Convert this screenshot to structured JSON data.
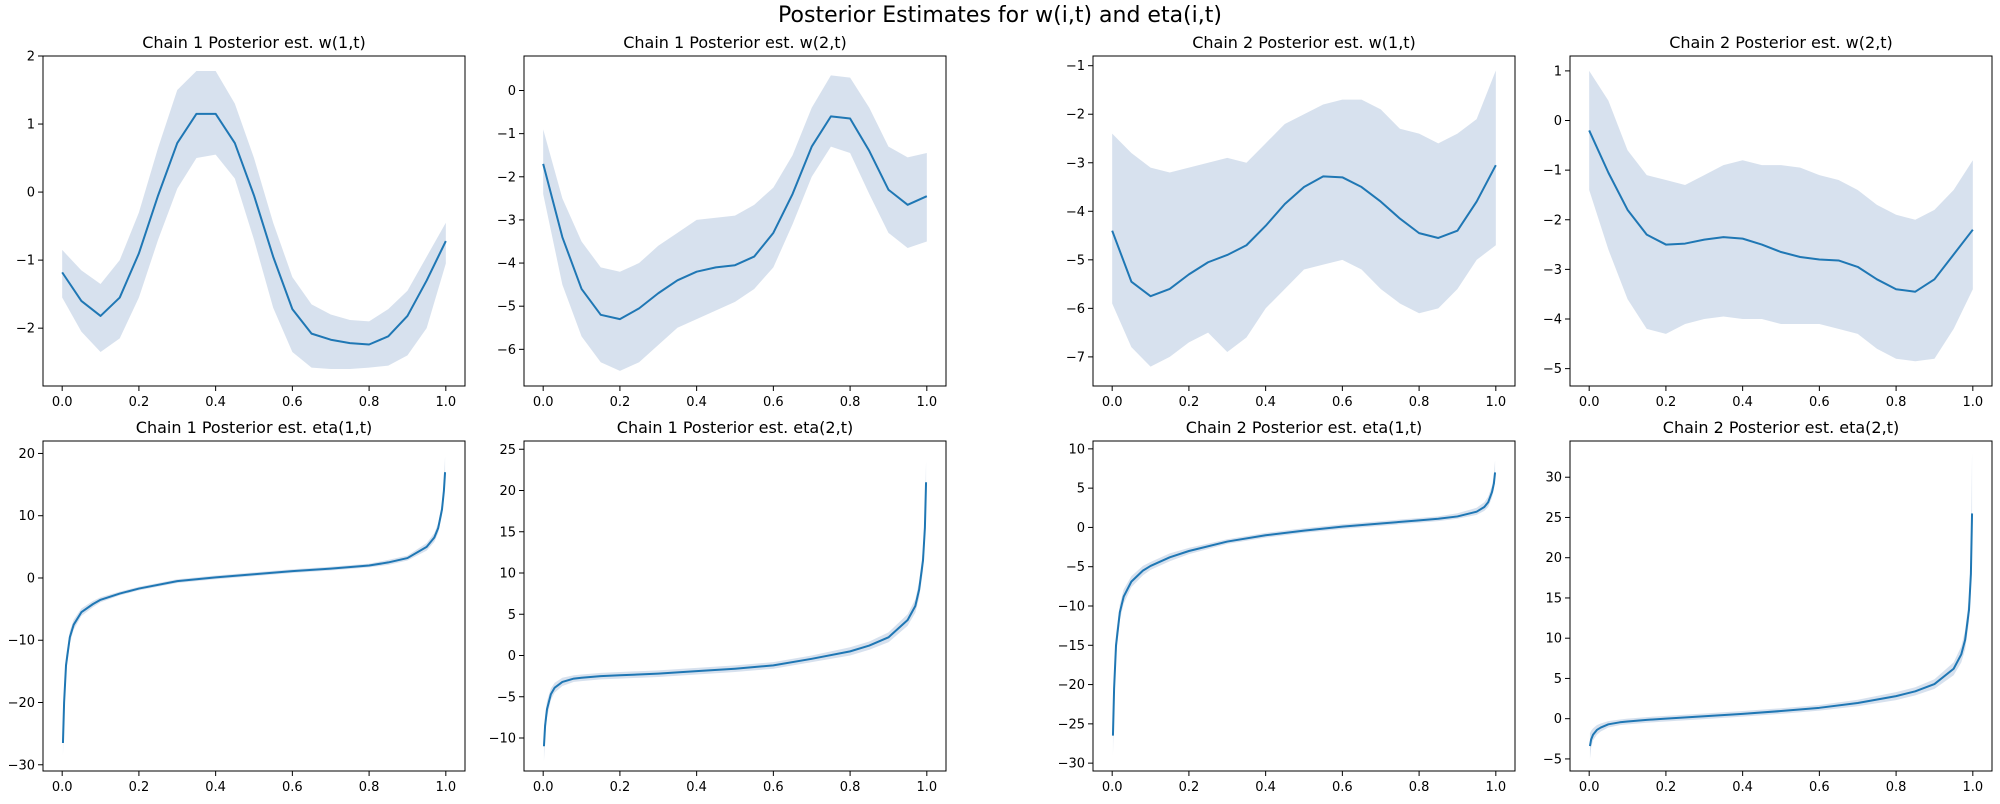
{
  "figure": {
    "title": "Posterior Estimates for w(i,t) and eta(i,t)",
    "line_color": "#1f77b4",
    "band_color": "#b0c4de",
    "axes_color": "#000000",
    "background": "#ffffff"
  },
  "chart_data": [
    {
      "type": "line",
      "title": "Chain 1 Posterior est. w(1,t)",
      "xlim": [
        -0.05,
        1.05
      ],
      "ylim": [
        -2.85,
        2.0
      ],
      "xticks": [
        0.0,
        0.2,
        0.4,
        0.6,
        0.8,
        1.0
      ],
      "xtick_labels": [
        "0.0",
        "0.2",
        "0.4",
        "0.6",
        "0.8",
        "1.0"
      ],
      "yticks": [
        -2,
        -1,
        0,
        1,
        2
      ],
      "ytick_labels": [
        "−2",
        "−1",
        "0",
        "1",
        "2"
      ],
      "grid": false,
      "x": [
        0.0,
        0.05,
        0.1,
        0.15,
        0.2,
        0.25,
        0.3,
        0.35,
        0.4,
        0.45,
        0.5,
        0.55,
        0.6,
        0.65,
        0.7,
        0.75,
        0.8,
        0.85,
        0.9,
        0.95,
        1.0
      ],
      "mean": [
        -1.18,
        -1.6,
        -1.82,
        -1.55,
        -0.9,
        -0.05,
        0.72,
        1.15,
        1.15,
        0.72,
        -0.05,
        -0.95,
        -1.72,
        -2.08,
        -2.17,
        -2.22,
        -2.24,
        -2.12,
        -1.82,
        -1.3,
        -0.72
      ],
      "lower": [
        -1.55,
        -2.05,
        -2.35,
        -2.15,
        -1.55,
        -0.7,
        0.05,
        0.5,
        0.55,
        0.2,
        -0.7,
        -1.7,
        -2.35,
        -2.58,
        -2.6,
        -2.6,
        -2.58,
        -2.55,
        -2.4,
        -2.0,
        -1.05
      ],
      "upper": [
        -0.85,
        -1.15,
        -1.35,
        -1.0,
        -0.3,
        0.65,
        1.5,
        1.78,
        1.78,
        1.3,
        0.5,
        -0.45,
        -1.25,
        -1.65,
        -1.8,
        -1.88,
        -1.9,
        -1.72,
        -1.45,
        -0.95,
        -0.45
      ]
    },
    {
      "type": "line",
      "title": "Chain 1 Posterior est. w(2,t)",
      "xlim": [
        -0.05,
        1.05
      ],
      "ylim": [
        -6.85,
        0.8
      ],
      "xticks": [
        0.0,
        0.2,
        0.4,
        0.6,
        0.8,
        1.0
      ],
      "xtick_labels": [
        "0.0",
        "0.2",
        "0.4",
        "0.6",
        "0.8",
        "1.0"
      ],
      "yticks": [
        -6,
        -5,
        -4,
        -3,
        -2,
        -1,
        0
      ],
      "ytick_labels": [
        "−6",
        "−5",
        "−4",
        "−3",
        "−2",
        "−1",
        "0"
      ],
      "grid": false,
      "x": [
        0.0,
        0.05,
        0.1,
        0.15,
        0.2,
        0.25,
        0.3,
        0.35,
        0.4,
        0.45,
        0.5,
        0.55,
        0.6,
        0.65,
        0.7,
        0.75,
        0.8,
        0.85,
        0.9,
        0.95,
        1.0
      ],
      "mean": [
        -1.7,
        -3.4,
        -4.6,
        -5.2,
        -5.3,
        -5.05,
        -4.7,
        -4.4,
        -4.2,
        -4.1,
        -4.05,
        -3.85,
        -3.3,
        -2.4,
        -1.3,
        -0.6,
        -0.65,
        -1.4,
        -2.3,
        -2.65,
        -2.45
      ],
      "lower": [
        -2.4,
        -4.5,
        -5.7,
        -6.3,
        -6.5,
        -6.3,
        -5.9,
        -5.5,
        -5.3,
        -5.1,
        -4.9,
        -4.6,
        -4.1,
        -3.1,
        -2.0,
        -1.3,
        -1.45,
        -2.4,
        -3.3,
        -3.65,
        -3.5
      ],
      "upper": [
        -0.9,
        -2.5,
        -3.5,
        -4.1,
        -4.2,
        -4.0,
        -3.6,
        -3.3,
        -3.0,
        -2.95,
        -2.9,
        -2.65,
        -2.25,
        -1.5,
        -0.4,
        0.35,
        0.3,
        -0.4,
        -1.3,
        -1.55,
        -1.45
      ]
    },
    {
      "type": "line",
      "title": "Chain 2 Posterior est. w(1,t)",
      "xlim": [
        -0.05,
        1.05
      ],
      "ylim": [
        -7.6,
        -0.8
      ],
      "xticks": [
        0.0,
        0.2,
        0.4,
        0.6,
        0.8,
        1.0
      ],
      "xtick_labels": [
        "0.0",
        "0.2",
        "0.4",
        "0.6",
        "0.8",
        "1.0"
      ],
      "yticks": [
        -7,
        -6,
        -5,
        -4,
        -3,
        -2,
        -1
      ],
      "ytick_labels": [
        "−7",
        "−6",
        "−5",
        "−4",
        "−3",
        "−2",
        "−1"
      ],
      "grid": false,
      "x": [
        0.0,
        0.05,
        0.1,
        0.15,
        0.2,
        0.25,
        0.3,
        0.35,
        0.4,
        0.45,
        0.5,
        0.55,
        0.6,
        0.65,
        0.7,
        0.75,
        0.8,
        0.85,
        0.9,
        0.95,
        1.0
      ],
      "mean": [
        -4.4,
        -5.45,
        -5.75,
        -5.6,
        -5.3,
        -5.05,
        -4.9,
        -4.7,
        -4.3,
        -3.85,
        -3.5,
        -3.28,
        -3.3,
        -3.5,
        -3.8,
        -4.15,
        -4.45,
        -4.55,
        -4.4,
        -3.8,
        -3.05
      ],
      "lower": [
        -5.9,
        -6.8,
        -7.2,
        -7.0,
        -6.7,
        -6.5,
        -6.9,
        -6.6,
        -6.0,
        -5.6,
        -5.2,
        -5.1,
        -5.0,
        -5.2,
        -5.6,
        -5.9,
        -6.1,
        -6.0,
        -5.6,
        -5.0,
        -4.7
      ],
      "upper": [
        -2.4,
        -2.8,
        -3.1,
        -3.2,
        -3.1,
        -3.0,
        -2.9,
        -3.0,
        -2.6,
        -2.2,
        -2.0,
        -1.8,
        -1.7,
        -1.7,
        -1.9,
        -2.3,
        -2.4,
        -2.6,
        -2.4,
        -2.1,
        -1.1
      ]
    },
    {
      "type": "line",
      "title": "Chain 2 Posterior est. w(2,t)",
      "xlim": [
        -0.05,
        1.05
      ],
      "ylim": [
        -5.35,
        1.3
      ],
      "xticks": [
        0.0,
        0.2,
        0.4,
        0.6,
        0.8,
        1.0
      ],
      "xtick_labels": [
        "0.0",
        "0.2",
        "0.4",
        "0.6",
        "0.8",
        "1.0"
      ],
      "yticks": [
        -5,
        -4,
        -3,
        -2,
        -1,
        0,
        1
      ],
      "ytick_labels": [
        "−5",
        "−4",
        "−3",
        "−2",
        "−1",
        "0",
        "1"
      ],
      "grid": false,
      "x": [
        0.0,
        0.05,
        0.1,
        0.15,
        0.2,
        0.25,
        0.3,
        0.35,
        0.4,
        0.45,
        0.5,
        0.55,
        0.6,
        0.65,
        0.7,
        0.75,
        0.8,
        0.85,
        0.9,
        0.95,
        1.0
      ],
      "mean": [
        -0.2,
        -1.05,
        -1.8,
        -2.3,
        -2.5,
        -2.48,
        -2.4,
        -2.35,
        -2.38,
        -2.5,
        -2.65,
        -2.75,
        -2.8,
        -2.82,
        -2.95,
        -3.2,
        -3.4,
        -3.45,
        -3.2,
        -2.7,
        -2.2
      ],
      "lower": [
        -1.4,
        -2.6,
        -3.6,
        -4.2,
        -4.3,
        -4.1,
        -4.0,
        -3.95,
        -4.0,
        -4.0,
        -4.1,
        -4.1,
        -4.1,
        -4.2,
        -4.3,
        -4.6,
        -4.8,
        -4.85,
        -4.8,
        -4.2,
        -3.4
      ],
      "upper": [
        1.0,
        0.4,
        -0.6,
        -1.1,
        -1.2,
        -1.3,
        -1.1,
        -0.9,
        -0.8,
        -0.9,
        -0.9,
        -0.95,
        -1.1,
        -1.2,
        -1.4,
        -1.7,
        -1.9,
        -2.0,
        -1.8,
        -1.4,
        -0.8
      ]
    },
    {
      "type": "line",
      "title": "Chain 1 Posterior est. eta(1,t)",
      "xlim": [
        -0.05,
        1.05
      ],
      "ylim": [
        -31,
        22
      ],
      "xticks": [
        0.0,
        0.2,
        0.4,
        0.6,
        0.8,
        1.0
      ],
      "xtick_labels": [
        "0.0",
        "0.2",
        "0.4",
        "0.6",
        "0.8",
        "1.0"
      ],
      "yticks": [
        -30,
        -20,
        -10,
        0,
        10,
        20
      ],
      "ytick_labels": [
        "−30",
        "−20",
        "−10",
        "0",
        "10",
        "20"
      ],
      "grid": false,
      "x": [
        0.002,
        0.005,
        0.01,
        0.02,
        0.03,
        0.05,
        0.08,
        0.1,
        0.15,
        0.2,
        0.3,
        0.4,
        0.5,
        0.6,
        0.7,
        0.8,
        0.85,
        0.9,
        0.95,
        0.97,
        0.98,
        0.99,
        0.995,
        0.998
      ],
      "mean": [
        -26.5,
        -20.0,
        -14.0,
        -9.5,
        -7.5,
        -5.5,
        -4.2,
        -3.5,
        -2.5,
        -1.7,
        -0.5,
        0.1,
        0.6,
        1.1,
        1.5,
        2.0,
        2.5,
        3.2,
        5.0,
        6.5,
        8.0,
        11.0,
        14.0,
        17.0
      ],
      "lower": [
        -28.5,
        -22.0,
        -15.5,
        -10.5,
        -8.3,
        -6.1,
        -4.7,
        -3.9,
        -2.8,
        -2.0,
        -0.8,
        -0.2,
        0.3,
        0.8,
        1.2,
        1.7,
        2.1,
        2.8,
        4.4,
        5.8,
        7.2,
        10.0,
        12.8,
        15.0
      ],
      "upper": [
        -24.5,
        -18.0,
        -12.5,
        -8.5,
        -6.7,
        -4.9,
        -3.7,
        -3.1,
        -2.2,
        -1.4,
        -0.2,
        0.4,
        0.9,
        1.4,
        1.8,
        2.3,
        2.9,
        3.6,
        5.6,
        7.2,
        8.8,
        12.0,
        15.5,
        19.5
      ]
    },
    {
      "type": "line",
      "title": "Chain 1 Posterior est. eta(2,t)",
      "xlim": [
        -0.05,
        1.05
      ],
      "ylim": [
        -14,
        26
      ],
      "xticks": [
        0.0,
        0.2,
        0.4,
        0.6,
        0.8,
        1.0
      ],
      "xtick_labels": [
        "0.0",
        "0.2",
        "0.4",
        "0.6",
        "0.8",
        "1.0"
      ],
      "yticks": [
        -10,
        -5,
        0,
        5,
        10,
        15,
        20,
        25
      ],
      "ytick_labels": [
        "−10",
        "−5",
        "0",
        "5",
        "10",
        "15",
        "20",
        "25"
      ],
      "grid": false,
      "x": [
        0.002,
        0.005,
        0.01,
        0.02,
        0.03,
        0.05,
        0.08,
        0.1,
        0.15,
        0.2,
        0.3,
        0.4,
        0.5,
        0.6,
        0.7,
        0.8,
        0.85,
        0.9,
        0.95,
        0.97,
        0.98,
        0.99,
        0.995,
        0.998
      ],
      "mean": [
        -11.0,
        -8.5,
        -6.5,
        -4.7,
        -3.9,
        -3.2,
        -2.8,
        -2.7,
        -2.5,
        -2.4,
        -2.2,
        -1.9,
        -1.6,
        -1.2,
        -0.4,
        0.5,
        1.2,
        2.2,
        4.3,
        6.0,
        8.0,
        11.5,
        15.5,
        21.0
      ],
      "lower": [
        -12.8,
        -9.8,
        -7.5,
        -5.4,
        -4.5,
        -3.7,
        -3.2,
        -3.1,
        -2.9,
        -2.8,
        -2.6,
        -2.3,
        -2.0,
        -1.6,
        -0.8,
        0.0,
        0.7,
        1.6,
        3.6,
        5.2,
        7.0,
        10.2,
        14.0,
        19.0
      ],
      "upper": [
        -9.2,
        -7.2,
        -5.5,
        -4.0,
        -3.3,
        -2.7,
        -2.4,
        -2.3,
        -2.1,
        -2.0,
        -1.8,
        -1.5,
        -1.2,
        -0.8,
        0.0,
        1.0,
        1.7,
        2.8,
        5.0,
        6.8,
        9.0,
        12.8,
        17.0,
        23.5
      ]
    },
    {
      "type": "line",
      "title": "Chain 2 Posterior est. eta(1,t)",
      "xlim": [
        -0.05,
        1.05
      ],
      "ylim": [
        -31,
        11
      ],
      "xticks": [
        0.0,
        0.2,
        0.4,
        0.6,
        0.8,
        1.0
      ],
      "xtick_labels": [
        "0.0",
        "0.2",
        "0.4",
        "0.6",
        "0.8",
        "1.0"
      ],
      "yticks": [
        -30,
        -25,
        -20,
        -15,
        -10,
        -5,
        0,
        5,
        10
      ],
      "ytick_labels": [
        "−30",
        "−25",
        "−20",
        "−15",
        "−10",
        "−5",
        "0",
        "5",
        "10"
      ],
      "grid": false,
      "x": [
        0.002,
        0.005,
        0.01,
        0.02,
        0.03,
        0.05,
        0.08,
        0.1,
        0.15,
        0.2,
        0.3,
        0.4,
        0.5,
        0.6,
        0.7,
        0.8,
        0.85,
        0.9,
        0.95,
        0.97,
        0.98,
        0.99,
        0.995,
        0.998
      ],
      "mean": [
        -26.5,
        -20.5,
        -15.0,
        -10.8,
        -8.8,
        -6.9,
        -5.5,
        -4.9,
        -3.8,
        -3.0,
        -1.8,
        -1.0,
        -0.4,
        0.1,
        0.5,
        0.9,
        1.1,
        1.4,
        2.0,
        2.6,
        3.2,
        4.5,
        5.6,
        7.0
      ],
      "lower": [
        -29.0,
        -22.5,
        -16.5,
        -11.8,
        -9.7,
        -7.6,
        -6.1,
        -5.4,
        -4.3,
        -3.4,
        -2.1,
        -1.3,
        -0.7,
        -0.2,
        0.2,
        0.6,
        0.8,
        1.1,
        1.6,
        2.1,
        2.6,
        3.8,
        4.8,
        5.9
      ],
      "upper": [
        -24.0,
        -18.5,
        -13.5,
        -9.8,
        -7.9,
        -6.2,
        -4.9,
        -4.4,
        -3.3,
        -2.6,
        -1.5,
        -0.7,
        -0.1,
        0.4,
        0.8,
        1.2,
        1.4,
        1.8,
        2.5,
        3.2,
        3.9,
        5.3,
        6.6,
        8.5
      ]
    },
    {
      "type": "line",
      "title": "Chain 2 Posterior est. eta(2,t)",
      "xlim": [
        -0.05,
        1.05
      ],
      "ylim": [
        -6.5,
        34.5
      ],
      "xticks": [
        0.0,
        0.2,
        0.4,
        0.6,
        0.8,
        1.0
      ],
      "xtick_labels": [
        "0.0",
        "0.2",
        "0.4",
        "0.6",
        "0.8",
        "1.0"
      ],
      "yticks": [
        -5,
        0,
        5,
        10,
        15,
        20,
        25,
        30
      ],
      "ytick_labels": [
        "−5",
        "0",
        "5",
        "10",
        "15",
        "20",
        "25",
        "30"
      ],
      "grid": false,
      "x": [
        0.002,
        0.005,
        0.01,
        0.02,
        0.03,
        0.05,
        0.08,
        0.1,
        0.15,
        0.2,
        0.3,
        0.4,
        0.5,
        0.6,
        0.7,
        0.8,
        0.85,
        0.9,
        0.95,
        0.97,
        0.98,
        0.99,
        0.995,
        0.998
      ],
      "mean": [
        -3.4,
        -2.6,
        -2.0,
        -1.4,
        -1.1,
        -0.7,
        -0.45,
        -0.35,
        -0.15,
        0.0,
        0.3,
        0.6,
        0.95,
        1.35,
        1.95,
        2.8,
        3.4,
        4.3,
        6.2,
        8.0,
        9.8,
        13.5,
        18.0,
        25.5
      ],
      "lower": [
        -5.0,
        -3.6,
        -2.7,
        -2.0,
        -1.6,
        -1.1,
        -0.8,
        -0.7,
        -0.5,
        -0.35,
        -0.05,
        0.25,
        0.6,
        1.0,
        1.55,
        2.3,
        2.9,
        3.7,
        5.4,
        7.0,
        8.6,
        12.0,
        16.0,
        22.5
      ],
      "upper": [
        -1.8,
        -1.5,
        -1.2,
        -0.8,
        -0.6,
        -0.3,
        -0.1,
        0.0,
        0.2,
        0.35,
        0.65,
        0.95,
        1.3,
        1.7,
        2.35,
        3.3,
        3.9,
        4.9,
        7.0,
        9.0,
        11.0,
        15.0,
        20.5,
        33.0
      ]
    }
  ]
}
